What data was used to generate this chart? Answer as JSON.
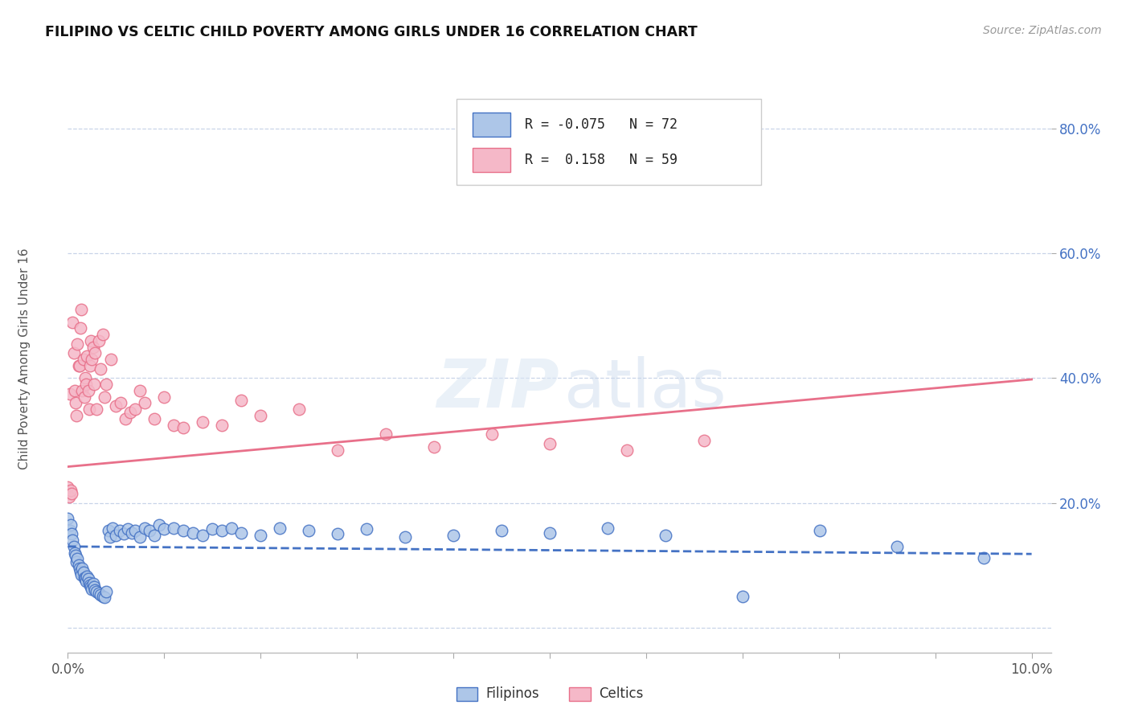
{
  "title": "FILIPINO VS CELTIC CHILD POVERTY AMONG GIRLS UNDER 16 CORRELATION CHART",
  "source": "Source: ZipAtlas.com",
  "ylabel": "Child Poverty Among Girls Under 16",
  "filipino_color": "#adc6e8",
  "celtic_color": "#f5b8c8",
  "filipino_line_color": "#4472c4",
  "celtic_line_color": "#e8708a",
  "ytick_labels": [
    "20.0%",
    "40.0%",
    "60.0%",
    "80.0%"
  ],
  "ytick_values": [
    0.2,
    0.4,
    0.6,
    0.8
  ],
  "background_color": "#ffffff",
  "grid_color": "#c8d4e8",
  "filipino_x": [
    0.0,
    0.0002,
    0.0003,
    0.0004,
    0.0005,
    0.0006,
    0.0007,
    0.0008,
    0.0009,
    0.001,
    0.0011,
    0.0012,
    0.0013,
    0.0014,
    0.0015,
    0.0016,
    0.0017,
    0.0018,
    0.0019,
    0.002,
    0.0021,
    0.0022,
    0.0023,
    0.0024,
    0.0025,
    0.0026,
    0.0027,
    0.0028,
    0.003,
    0.0032,
    0.0034,
    0.0036,
    0.0038,
    0.004,
    0.0042,
    0.0044,
    0.0046,
    0.005,
    0.0054,
    0.0058,
    0.0062,
    0.0066,
    0.007,
    0.0075,
    0.008,
    0.0085,
    0.009,
    0.0095,
    0.01,
    0.011,
    0.012,
    0.013,
    0.014,
    0.015,
    0.016,
    0.017,
    0.018,
    0.02,
    0.022,
    0.025,
    0.028,
    0.031,
    0.035,
    0.04,
    0.045,
    0.05,
    0.056,
    0.062,
    0.07,
    0.078,
    0.086,
    0.095
  ],
  "filipino_y": [
    0.175,
    0.155,
    0.165,
    0.15,
    0.14,
    0.13,
    0.12,
    0.115,
    0.105,
    0.11,
    0.1,
    0.095,
    0.09,
    0.085,
    0.095,
    0.088,
    0.08,
    0.078,
    0.075,
    0.082,
    0.078,
    0.072,
    0.068,
    0.065,
    0.062,
    0.07,
    0.065,
    0.06,
    0.058,
    0.055,
    0.052,
    0.05,
    0.048,
    0.058,
    0.155,
    0.145,
    0.16,
    0.148,
    0.155,
    0.15,
    0.158,
    0.152,
    0.155,
    0.145,
    0.16,
    0.155,
    0.148,
    0.165,
    0.158,
    0.16,
    0.155,
    0.152,
    0.148,
    0.158,
    0.155,
    0.16,
    0.152,
    0.148,
    0.16,
    0.155,
    0.15,
    0.158,
    0.145,
    0.148,
    0.155,
    0.152,
    0.16,
    0.148,
    0.05,
    0.155,
    0.13,
    0.112
  ],
  "celtic_x": [
    0.0,
    0.0001,
    0.0002,
    0.0003,
    0.0004,
    0.0005,
    0.0006,
    0.0007,
    0.0008,
    0.0009,
    0.001,
    0.0011,
    0.0012,
    0.0013,
    0.0014,
    0.0015,
    0.0016,
    0.0017,
    0.0018,
    0.0019,
    0.002,
    0.0021,
    0.0022,
    0.0023,
    0.0024,
    0.0025,
    0.0026,
    0.0027,
    0.0028,
    0.003,
    0.0032,
    0.0034,
    0.0036,
    0.0038,
    0.004,
    0.0045,
    0.005,
    0.0055,
    0.006,
    0.0065,
    0.007,
    0.0075,
    0.008,
    0.009,
    0.01,
    0.011,
    0.012,
    0.014,
    0.016,
    0.018,
    0.02,
    0.024,
    0.028,
    0.033,
    0.038,
    0.044,
    0.05,
    0.058,
    0.066
  ],
  "celtic_y": [
    0.225,
    0.21,
    0.375,
    0.22,
    0.215,
    0.49,
    0.44,
    0.38,
    0.36,
    0.34,
    0.455,
    0.42,
    0.42,
    0.48,
    0.51,
    0.38,
    0.43,
    0.37,
    0.4,
    0.39,
    0.435,
    0.38,
    0.35,
    0.42,
    0.46,
    0.43,
    0.45,
    0.39,
    0.44,
    0.35,
    0.46,
    0.415,
    0.47,
    0.37,
    0.39,
    0.43,
    0.355,
    0.36,
    0.335,
    0.345,
    0.35,
    0.38,
    0.36,
    0.335,
    0.37,
    0.325,
    0.32,
    0.33,
    0.325,
    0.365,
    0.34,
    0.35,
    0.285,
    0.31,
    0.29,
    0.31,
    0.295,
    0.285,
    0.3
  ],
  "fil_line_x": [
    0.0,
    0.1
  ],
  "fil_line_y": [
    0.13,
    0.118
  ],
  "cel_line_x": [
    0.0,
    0.1
  ],
  "cel_line_y": [
    0.258,
    0.398
  ],
  "xlim": [
    0.0,
    0.102
  ],
  "ylim": [
    -0.04,
    0.88
  ],
  "xtick_positions": [
    0.0,
    0.01,
    0.02,
    0.03,
    0.04,
    0.05,
    0.06,
    0.07,
    0.08,
    0.09,
    0.1
  ],
  "legend_r1": "R = -0.075",
  "legend_n1": "N = 72",
  "legend_r2": "R =  0.158",
  "legend_n2": "N = 59"
}
